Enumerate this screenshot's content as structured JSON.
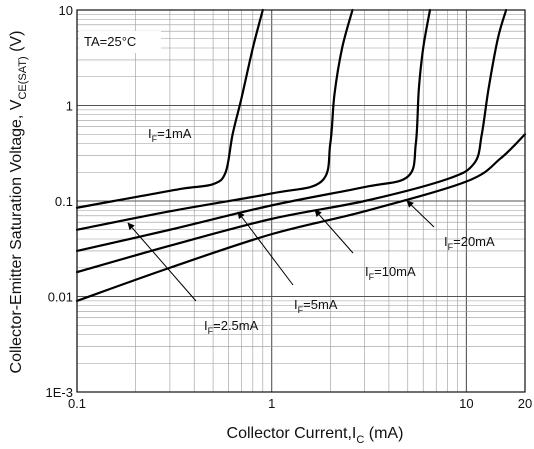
{
  "chart_data": {
    "type": "line",
    "xlabel": "Collector Current,I_C (mA)",
    "ylabel": "Collector-Emitter Saturation Voltage, V_CE(SAT) (V)",
    "x_scale": "log",
    "y_scale": "log",
    "xlim": [
      0.1,
      20
    ],
    "ylim": [
      0.001,
      10
    ],
    "x_ticks": [
      {
        "value": 0.1,
        "label": "0.1"
      },
      {
        "value": 1,
        "label": "1"
      },
      {
        "value": 10,
        "label": "10"
      },
      {
        "value": 20,
        "label": "20"
      }
    ],
    "y_ticks": [
      {
        "value": 0.001,
        "label": "1E-3"
      },
      {
        "value": 0.01,
        "label": "0.01"
      },
      {
        "value": 0.1,
        "label": "0.1"
      },
      {
        "value": 1,
        "label": "1"
      },
      {
        "value": 10,
        "label": "10"
      }
    ],
    "grid": true,
    "annotations": {
      "ta": "TA=25°C",
      "labels": [
        {
          "id": "if1",
          "base": "I",
          "sub": "F",
          "rest": "=1mA"
        },
        {
          "id": "if2_5",
          "base": "I",
          "sub": "F",
          "rest": "=2.5mA"
        },
        {
          "id": "if5",
          "base": "I",
          "sub": "F",
          "rest": "=5mA"
        },
        {
          "id": "if10",
          "base": "I",
          "sub": "F",
          "rest": "=10mA"
        },
        {
          "id": "if20",
          "base": "I",
          "sub": "F",
          "rest": "=20mA"
        }
      ]
    },
    "series": [
      {
        "id": "if1",
        "points": [
          [
            0.1,
            0.085
          ],
          [
            0.2,
            0.11
          ],
          [
            0.35,
            0.135
          ],
          [
            0.5,
            0.15
          ],
          [
            0.58,
            0.2
          ],
          [
            0.63,
            0.5
          ],
          [
            0.7,
            1.2
          ],
          [
            0.8,
            4
          ],
          [
            0.9,
            10
          ]
        ]
      },
      {
        "id": "if2_5",
        "points": [
          [
            0.1,
            0.05
          ],
          [
            0.3,
            0.078
          ],
          [
            1,
            0.12
          ],
          [
            1.8,
            0.16
          ],
          [
            2.0,
            0.4
          ],
          [
            2.1,
            1.3
          ],
          [
            2.3,
            4
          ],
          [
            2.6,
            10
          ]
        ]
      },
      {
        "id": "if5",
        "points": [
          [
            0.1,
            0.03
          ],
          [
            0.3,
            0.05
          ],
          [
            1,
            0.09
          ],
          [
            3,
            0.14
          ],
          [
            5,
            0.18
          ],
          [
            5.5,
            0.4
          ],
          [
            5.7,
            1.5
          ],
          [
            6,
            4
          ],
          [
            6.5,
            10
          ]
        ]
      },
      {
        "id": "if10",
        "points": [
          [
            0.1,
            0.018
          ],
          [
            0.3,
            0.034
          ],
          [
            1,
            0.065
          ],
          [
            3,
            0.1
          ],
          [
            8,
            0.17
          ],
          [
            11,
            0.25
          ],
          [
            12,
            0.5
          ],
          [
            13,
            1.5
          ],
          [
            14.5,
            5
          ],
          [
            16,
            10
          ]
        ]
      },
      {
        "id": "if20",
        "points": [
          [
            0.1,
            0.009
          ],
          [
            0.3,
            0.02
          ],
          [
            1,
            0.045
          ],
          [
            3,
            0.078
          ],
          [
            10,
            0.16
          ],
          [
            15,
            0.28
          ],
          [
            20,
            0.5
          ]
        ]
      }
    ]
  }
}
